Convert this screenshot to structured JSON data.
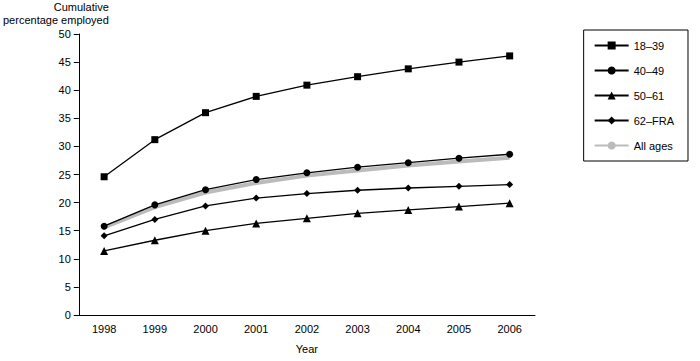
{
  "chart_data": {
    "type": "line",
    "y_label": "Cumulative\npercentage employed",
    "x_label": "Year",
    "categories": [
      "1998",
      "1999",
      "2000",
      "2001",
      "2002",
      "2003",
      "2004",
      "2005",
      "2006"
    ],
    "series": [
      {
        "name": "18–39",
        "color": "#000000",
        "marker": "square",
        "line_style": "solid",
        "values": [
          24.6,
          31.2,
          36.0,
          38.9,
          40.9,
          42.4,
          43.8,
          45.0,
          46.1
        ]
      },
      {
        "name": "40–49",
        "color": "#000000",
        "marker": "circle",
        "line_style": "solid",
        "values": [
          15.8,
          19.6,
          22.3,
          24.1,
          25.3,
          26.3,
          27.1,
          27.9,
          28.6
        ]
      },
      {
        "name": "50–61",
        "color": "#000000",
        "marker": "triangle",
        "line_style": "solid",
        "values": [
          11.4,
          13.3,
          15.0,
          16.3,
          17.2,
          18.1,
          18.7,
          19.3,
          19.9
        ]
      },
      {
        "name": "62–FRA",
        "color": "#000000",
        "marker": "diamond",
        "line_style": "solid",
        "values": [
          14.1,
          17.0,
          19.4,
          20.8,
          21.6,
          22.2,
          22.6,
          22.9,
          23.2
        ]
      },
      {
        "name": "All ages",
        "color": "#bbbbbb",
        "marker": "none",
        "line_style": "thick",
        "values": [
          15.6,
          19.2,
          21.8,
          23.5,
          24.8,
          25.7,
          26.6,
          27.3,
          28.0
        ]
      }
    ],
    "ylim": [
      0,
      50
    ],
    "yticks": [
      0,
      5,
      10,
      15,
      20,
      25,
      30,
      35,
      40,
      45,
      50
    ],
    "grid": false,
    "legend": "right"
  }
}
